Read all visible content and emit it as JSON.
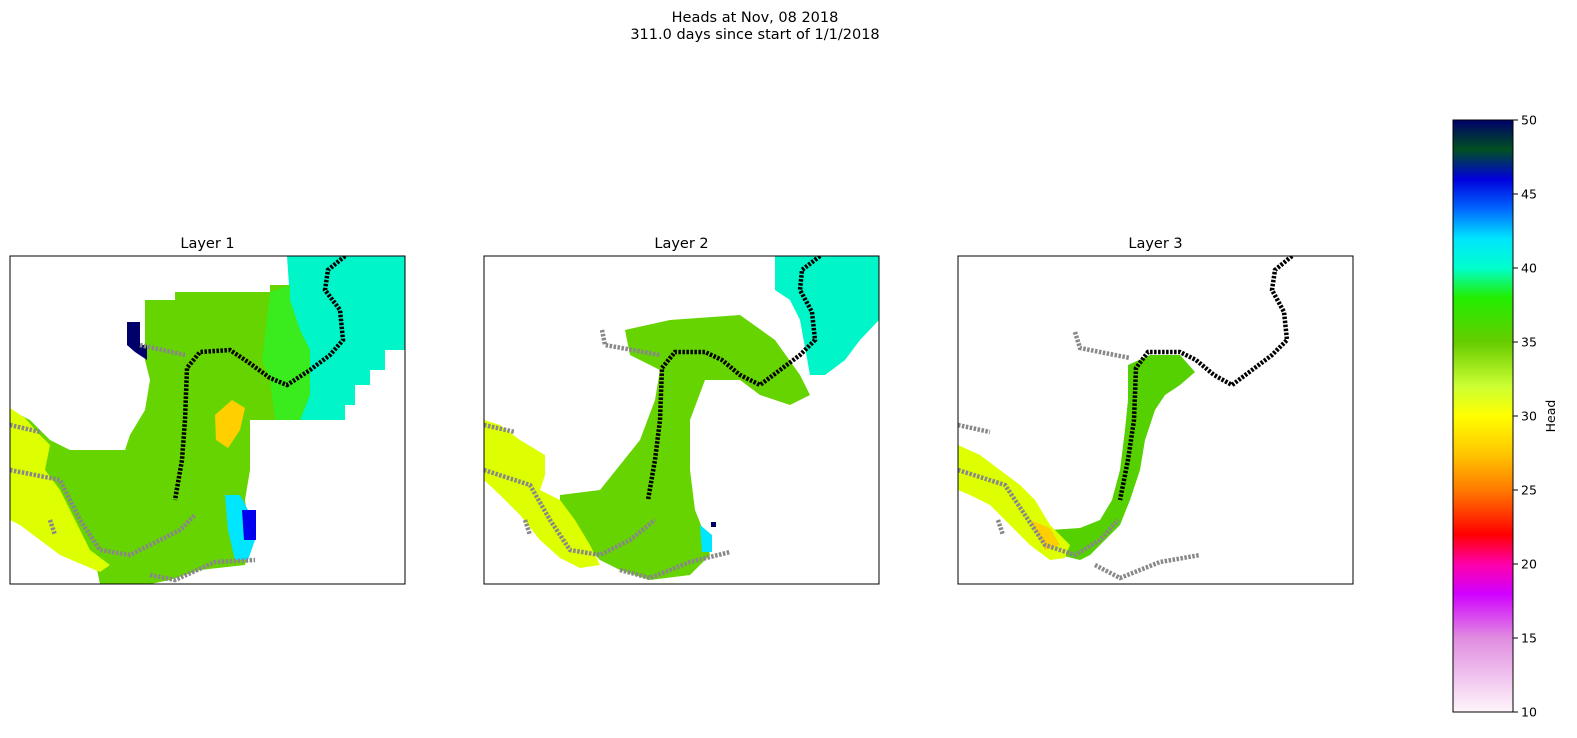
{
  "figure": {
    "title_line1": "Heads at Nov, 08 2018",
    "title_line2": "311.0 days since start of 1/1/2018"
  },
  "chart_data": {
    "type": "heatmap",
    "panels": [
      {
        "title": "Layer 1",
        "grid": false,
        "axes_ticks": false
      },
      {
        "title": "Layer 2",
        "grid": false,
        "axes_ticks": false
      },
      {
        "title": "Layer 3",
        "grid": false,
        "axes_ticks": false
      }
    ],
    "colorbar": {
      "label": "Head",
      "range": [
        10,
        50
      ],
      "ticks": [
        10,
        15,
        20,
        25,
        30,
        35,
        40,
        45,
        50
      ],
      "colormap_stops": [
        {
          "value": 10,
          "color": "#fff5fb"
        },
        {
          "value": 15,
          "color": "#e08ce0"
        },
        {
          "value": 18,
          "color": "#d000ff"
        },
        {
          "value": 20,
          "color": "#ff00aa"
        },
        {
          "value": 22,
          "color": "#ff0000"
        },
        {
          "value": 25,
          "color": "#ff7a00"
        },
        {
          "value": 27.5,
          "color": "#ffc800"
        },
        {
          "value": 30,
          "color": "#ffff00"
        },
        {
          "value": 32,
          "color": "#ccff33"
        },
        {
          "value": 35,
          "color": "#66cc00"
        },
        {
          "value": 38,
          "color": "#22ee00"
        },
        {
          "value": 40,
          "color": "#00ffcc"
        },
        {
          "value": 42,
          "color": "#00e5ff"
        },
        {
          "value": 44,
          "color": "#0066ff"
        },
        {
          "value": 46,
          "color": "#0000dd"
        },
        {
          "value": 48,
          "color": "#005020"
        },
        {
          "value": 50,
          "color": "#00006a"
        }
      ]
    },
    "overlay_series": [
      {
        "color": "#888888"
      },
      {
        "color": "#000000"
      }
    ]
  }
}
